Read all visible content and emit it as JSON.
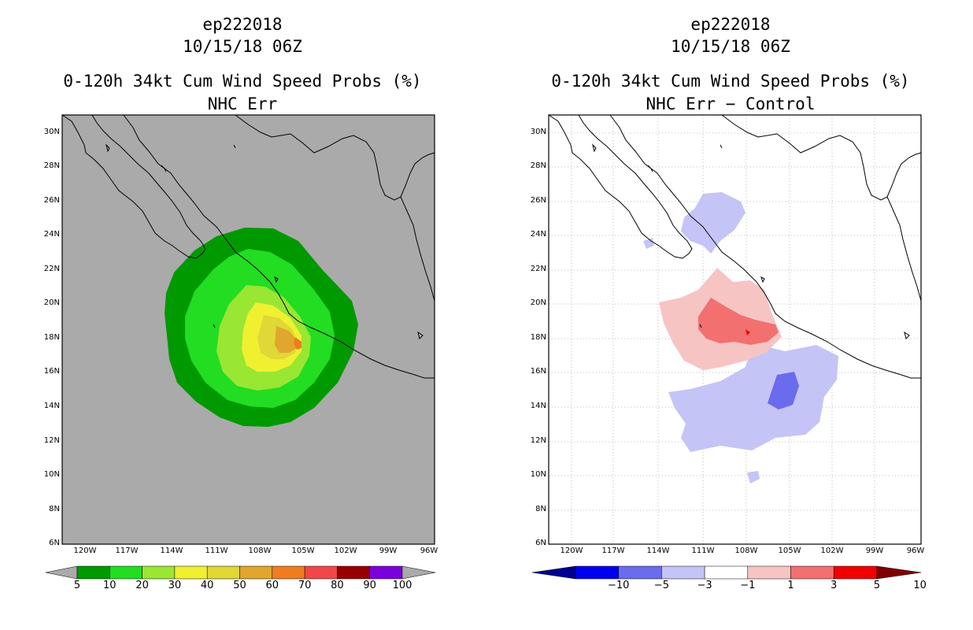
{
  "left_panel": {
    "storm_id": "ep222018",
    "datetime": "10/15/18 06Z",
    "product": "0-120h 34kt Cum Wind Speed Probs (%)",
    "subtitle": "NHC Err",
    "colorbar": {
      "labels": [
        "5",
        "10",
        "20",
        "30",
        "40",
        "50",
        "60",
        "70",
        "80",
        "90",
        "100"
      ],
      "colors": [
        "#009900",
        "#22dd22",
        "#99e633",
        "#f0f030",
        "#dfd837",
        "#e0a62e",
        "#f07c20",
        "#f04848",
        "#960000",
        "#7a00dc"
      ]
    }
  },
  "right_panel": {
    "storm_id": "ep222018",
    "datetime": "10/15/18 06Z",
    "product": "0-120h 34kt Cum Wind Speed Probs (%)",
    "subtitle": "NHC Err − Control",
    "colorbar": {
      "labels": [
        "−10",
        "−5",
        "−3",
        "−1",
        "1",
        "3",
        "5",
        "10"
      ],
      "colors": [
        "#000090",
        "#0000f0",
        "#6b6bee",
        "#c4c4f7",
        "#ffffff",
        "#f7c4c4",
        "#f27070",
        "#f00000",
        "#800000"
      ]
    }
  },
  "axes": {
    "lat_labels": [
      "30N",
      "28N",
      "26N",
      "24N",
      "22N",
      "20N",
      "18N",
      "16N",
      "14N",
      "12N",
      "10N",
      "8N",
      "6N"
    ],
    "lon_labels": [
      "120W",
      "117W",
      "114W",
      "111W",
      "108W",
      "105W",
      "102W",
      "99W",
      "96W"
    ]
  }
}
